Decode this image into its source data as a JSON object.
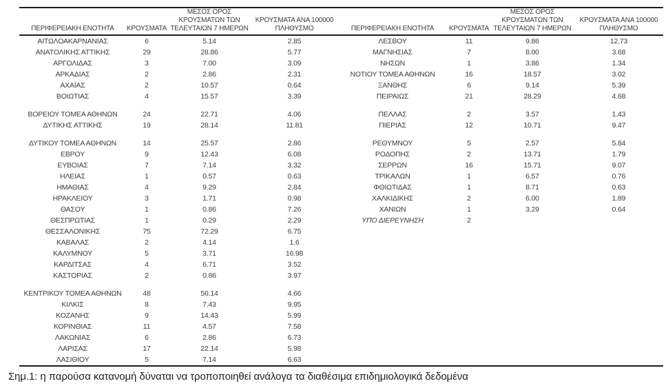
{
  "table": {
    "headers": {
      "region": "ΠΕΡΙΦΕΡΕΙΑΚΗ ΕΝΟΤΗΤΑ",
      "cases": "ΚΡΟΥΣΜΑΤΑ",
      "avg7": "ΜΕΣΟΣ ΟΡΟΣ\nΚΡΟΥΣΜΑΤΩΝ ΤΩΝ\nΤΕΛΕΥΤΑΙΩΝ 7 ΗΜΕΡΩΝ",
      "per100k": "ΚΡΟΥΣΜΑΤΑ ΑΝΑ 100000\nΠΛΗΘΥΣΜΟ"
    },
    "rows": [
      {
        "left": {
          "name": "ΑΙΤΩΛΟΑΚΑΡΝΑΝΙΑΣ",
          "cases": "6",
          "avg7": "5.14",
          "per100k": "2.85"
        },
        "right": {
          "name": "ΛΕΣΒΟΥ",
          "cases": "11",
          "avg7": "9.86",
          "per100k": "12.73"
        }
      },
      {
        "left": {
          "name": "ΑΝΑΤΟΛΙΚΗΣ ΑΤΤΙΚΗΣ",
          "cases": "29",
          "avg7": "28.86",
          "per100k": "5.77"
        },
        "right": {
          "name": "ΜΑΓΝΗΣΙΑΣ",
          "cases": "7",
          "avg7": "8.00",
          "per100k": "3.68"
        }
      },
      {
        "left": {
          "name": "ΑΡΓΟΛΙΔΑΣ",
          "cases": "3",
          "avg7": "7.00",
          "per100k": "3.09"
        },
        "right": {
          "name": "ΝΗΣΩΝ",
          "cases": "1",
          "avg7": "3.86",
          "per100k": "1.34"
        }
      },
      {
        "left": {
          "name": "ΑΡΚΑΔΙΑΣ",
          "cases": "2",
          "avg7": "2.86",
          "per100k": "2.31"
        },
        "right": {
          "name": "ΝΟΤΙΟΥ ΤΟΜΕΑ ΑΘΗΝΩΝ",
          "cases": "16",
          "avg7": "18.57",
          "per100k": "3.02"
        }
      },
      {
        "left": {
          "name": "ΑΧΑΪΑΣ",
          "cases": "2",
          "avg7": "10.57",
          "per100k": "0.64"
        },
        "right": {
          "name": "ΞΑΝΘΗΣ",
          "cases": "6",
          "avg7": "9.14",
          "per100k": "5.39"
        }
      },
      {
        "left": {
          "name": "ΒΟΙΩΤΙΑΣ",
          "cases": "4",
          "avg7": "15.57",
          "per100k": "3.39"
        },
        "right": {
          "name": "ΠΕΙΡΑΙΩΣ",
          "cases": "21",
          "avg7": "28.29",
          "per100k": "4.68"
        }
      },
      {
        "sep": true
      },
      {
        "left": {
          "name": "ΒΟΡΕΙΟΥ ΤΟΜΕΑ ΑΘΗΝΩΝ",
          "cases": "24",
          "avg7": "22.71",
          "per100k": "4.06"
        },
        "right": {
          "name": "ΠΕΛΛΑΣ",
          "cases": "2",
          "avg7": "3.57",
          "per100k": "1.43"
        }
      },
      {
        "left": {
          "name": "ΔΥΤΙΚΗΣ ΑΤΤΙΚΗΣ",
          "cases": "19",
          "avg7": "28.14",
          "per100k": "11.81"
        },
        "right": {
          "name": "ΠΙΕΡΙΑΣ",
          "cases": "12",
          "avg7": "10.71",
          "per100k": "9.47"
        }
      },
      {
        "sep": true
      },
      {
        "left": {
          "name": "ΔΥΤΙΚΟΥ ΤΟΜΕΑ ΑΘΗΝΩΝ",
          "cases": "14",
          "avg7": "25.57",
          "per100k": "2.86"
        },
        "right": {
          "name": "ΡΕΘΥΜΝΟΥ",
          "cases": "5",
          "avg7": "2.57",
          "per100k": "5.84"
        }
      },
      {
        "left": {
          "name": "ΕΒΡΟΥ",
          "cases": "9",
          "avg7": "12.43",
          "per100k": "6.08"
        },
        "right": {
          "name": "ΡΟΔΟΠΗΣ",
          "cases": "2",
          "avg7": "13.71",
          "per100k": "1.79"
        }
      },
      {
        "left": {
          "name": "ΕΥΒΟΙΑΣ",
          "cases": "7",
          "avg7": "7.14",
          "per100k": "3.32"
        },
        "right": {
          "name": "ΣΕΡΡΩΝ",
          "cases": "16",
          "avg7": "15.71",
          "per100k": "9.07"
        }
      },
      {
        "left": {
          "name": "ΗΛΕΙΑΣ",
          "cases": "1",
          "avg7": "0.57",
          "per100k": "0.63"
        },
        "right": {
          "name": "ΤΡΙΚΑΛΩΝ",
          "cases": "1",
          "avg7": "6.57",
          "per100k": "0.76"
        }
      },
      {
        "left": {
          "name": "ΗΜΑΘΙΑΣ",
          "cases": "4",
          "avg7": "9.29",
          "per100k": "2.84"
        },
        "right": {
          "name": "ΦΘΙΩΤΙΔΑΣ",
          "cases": "1",
          "avg7": "8.71",
          "per100k": "0.63"
        }
      },
      {
        "left": {
          "name": "ΗΡΑΚΛΕΙΟΥ",
          "cases": "3",
          "avg7": "1.71",
          "per100k": "0.98"
        },
        "right": {
          "name": "ΧΑΛΚΙΔΙΚΗΣ",
          "cases": "2",
          "avg7": "6.00",
          "per100k": "1.89"
        }
      },
      {
        "left": {
          "name": "ΘΑΣΟΥ",
          "cases": "1",
          "avg7": "0.86",
          "per100k": "7.26"
        },
        "right": {
          "name": "ΧΑΝΙΩΝ",
          "cases": "1",
          "avg7": "3.29",
          "per100k": "0.64"
        }
      },
      {
        "left": {
          "name": "ΘΕΣΠΡΩΤΙΑΣ",
          "cases": "1",
          "avg7": "0.29",
          "per100k": "2.29"
        },
        "right": {
          "name": "ΥΠΟ ΔΙΕΡΕΥΝΗΣΗ",
          "cases": "2",
          "avg7": "",
          "per100k": "",
          "italic": true
        }
      },
      {
        "left": {
          "name": "ΘΕΣΣΑΛΟΝΙΚΗΣ",
          "cases": "75",
          "avg7": "72.29",
          "per100k": "6.75"
        },
        "right": null
      },
      {
        "left": {
          "name": "ΚΑΒΑΛΑΣ",
          "cases": "2",
          "avg7": "4.14",
          "per100k": "1.6"
        },
        "right": null
      },
      {
        "left": {
          "name": "ΚΑΛΥΜΝΟΥ",
          "cases": "5",
          "avg7": "3.71",
          "per100k": "16.98"
        },
        "right": null
      },
      {
        "left": {
          "name": "ΚΑΡΔΙΤΣΑΣ",
          "cases": "4",
          "avg7": "6.71",
          "per100k": "3.52"
        },
        "right": null
      },
      {
        "left": {
          "name": "ΚΑΣΤΟΡΙΑΣ",
          "cases": "2",
          "avg7": "0.86",
          "per100k": "3.97"
        },
        "right": null
      },
      {
        "sep": true
      },
      {
        "left": {
          "name": "ΚΕΝΤΡΙΚΟΥ ΤΟΜΕΑ ΑΘΗΝΩΝ",
          "cases": "48",
          "avg7": "56.14",
          "per100k": "4.66"
        },
        "right": null
      },
      {
        "left": {
          "name": "ΚΙΛΚΙΣ",
          "cases": "8",
          "avg7": "7.43",
          "per100k": "9.95"
        },
        "right": null
      },
      {
        "left": {
          "name": "ΚΟΖΑΝΗΣ",
          "cases": "9",
          "avg7": "14.43",
          "per100k": "5.99"
        },
        "right": null
      },
      {
        "left": {
          "name": "ΚΟΡΙΝΘΙΑΣ",
          "cases": "11",
          "avg7": "4.57",
          "per100k": "7.58"
        },
        "right": null
      },
      {
        "left": {
          "name": "ΛΑΚΩΝΙΑΣ",
          "cases": "6",
          "avg7": "2.86",
          "per100k": "6.73"
        },
        "right": null
      },
      {
        "left": {
          "name": "ΛΑΡΙΣΑΣ",
          "cases": "17",
          "avg7": "22.14",
          "per100k": "5.98"
        },
        "right": null
      },
      {
        "left": {
          "name": "ΛΑΣΙΘΙΟΥ",
          "cases": "5",
          "avg7": "7.14",
          "per100k": "6.63"
        },
        "right": null
      }
    ]
  },
  "note": "Σημ.1: η παρούσα κατανομή δύναται να τροποποιηθεί ανάλογα τα διαθέσιμα επιδημιολογικά δεδομένα"
}
